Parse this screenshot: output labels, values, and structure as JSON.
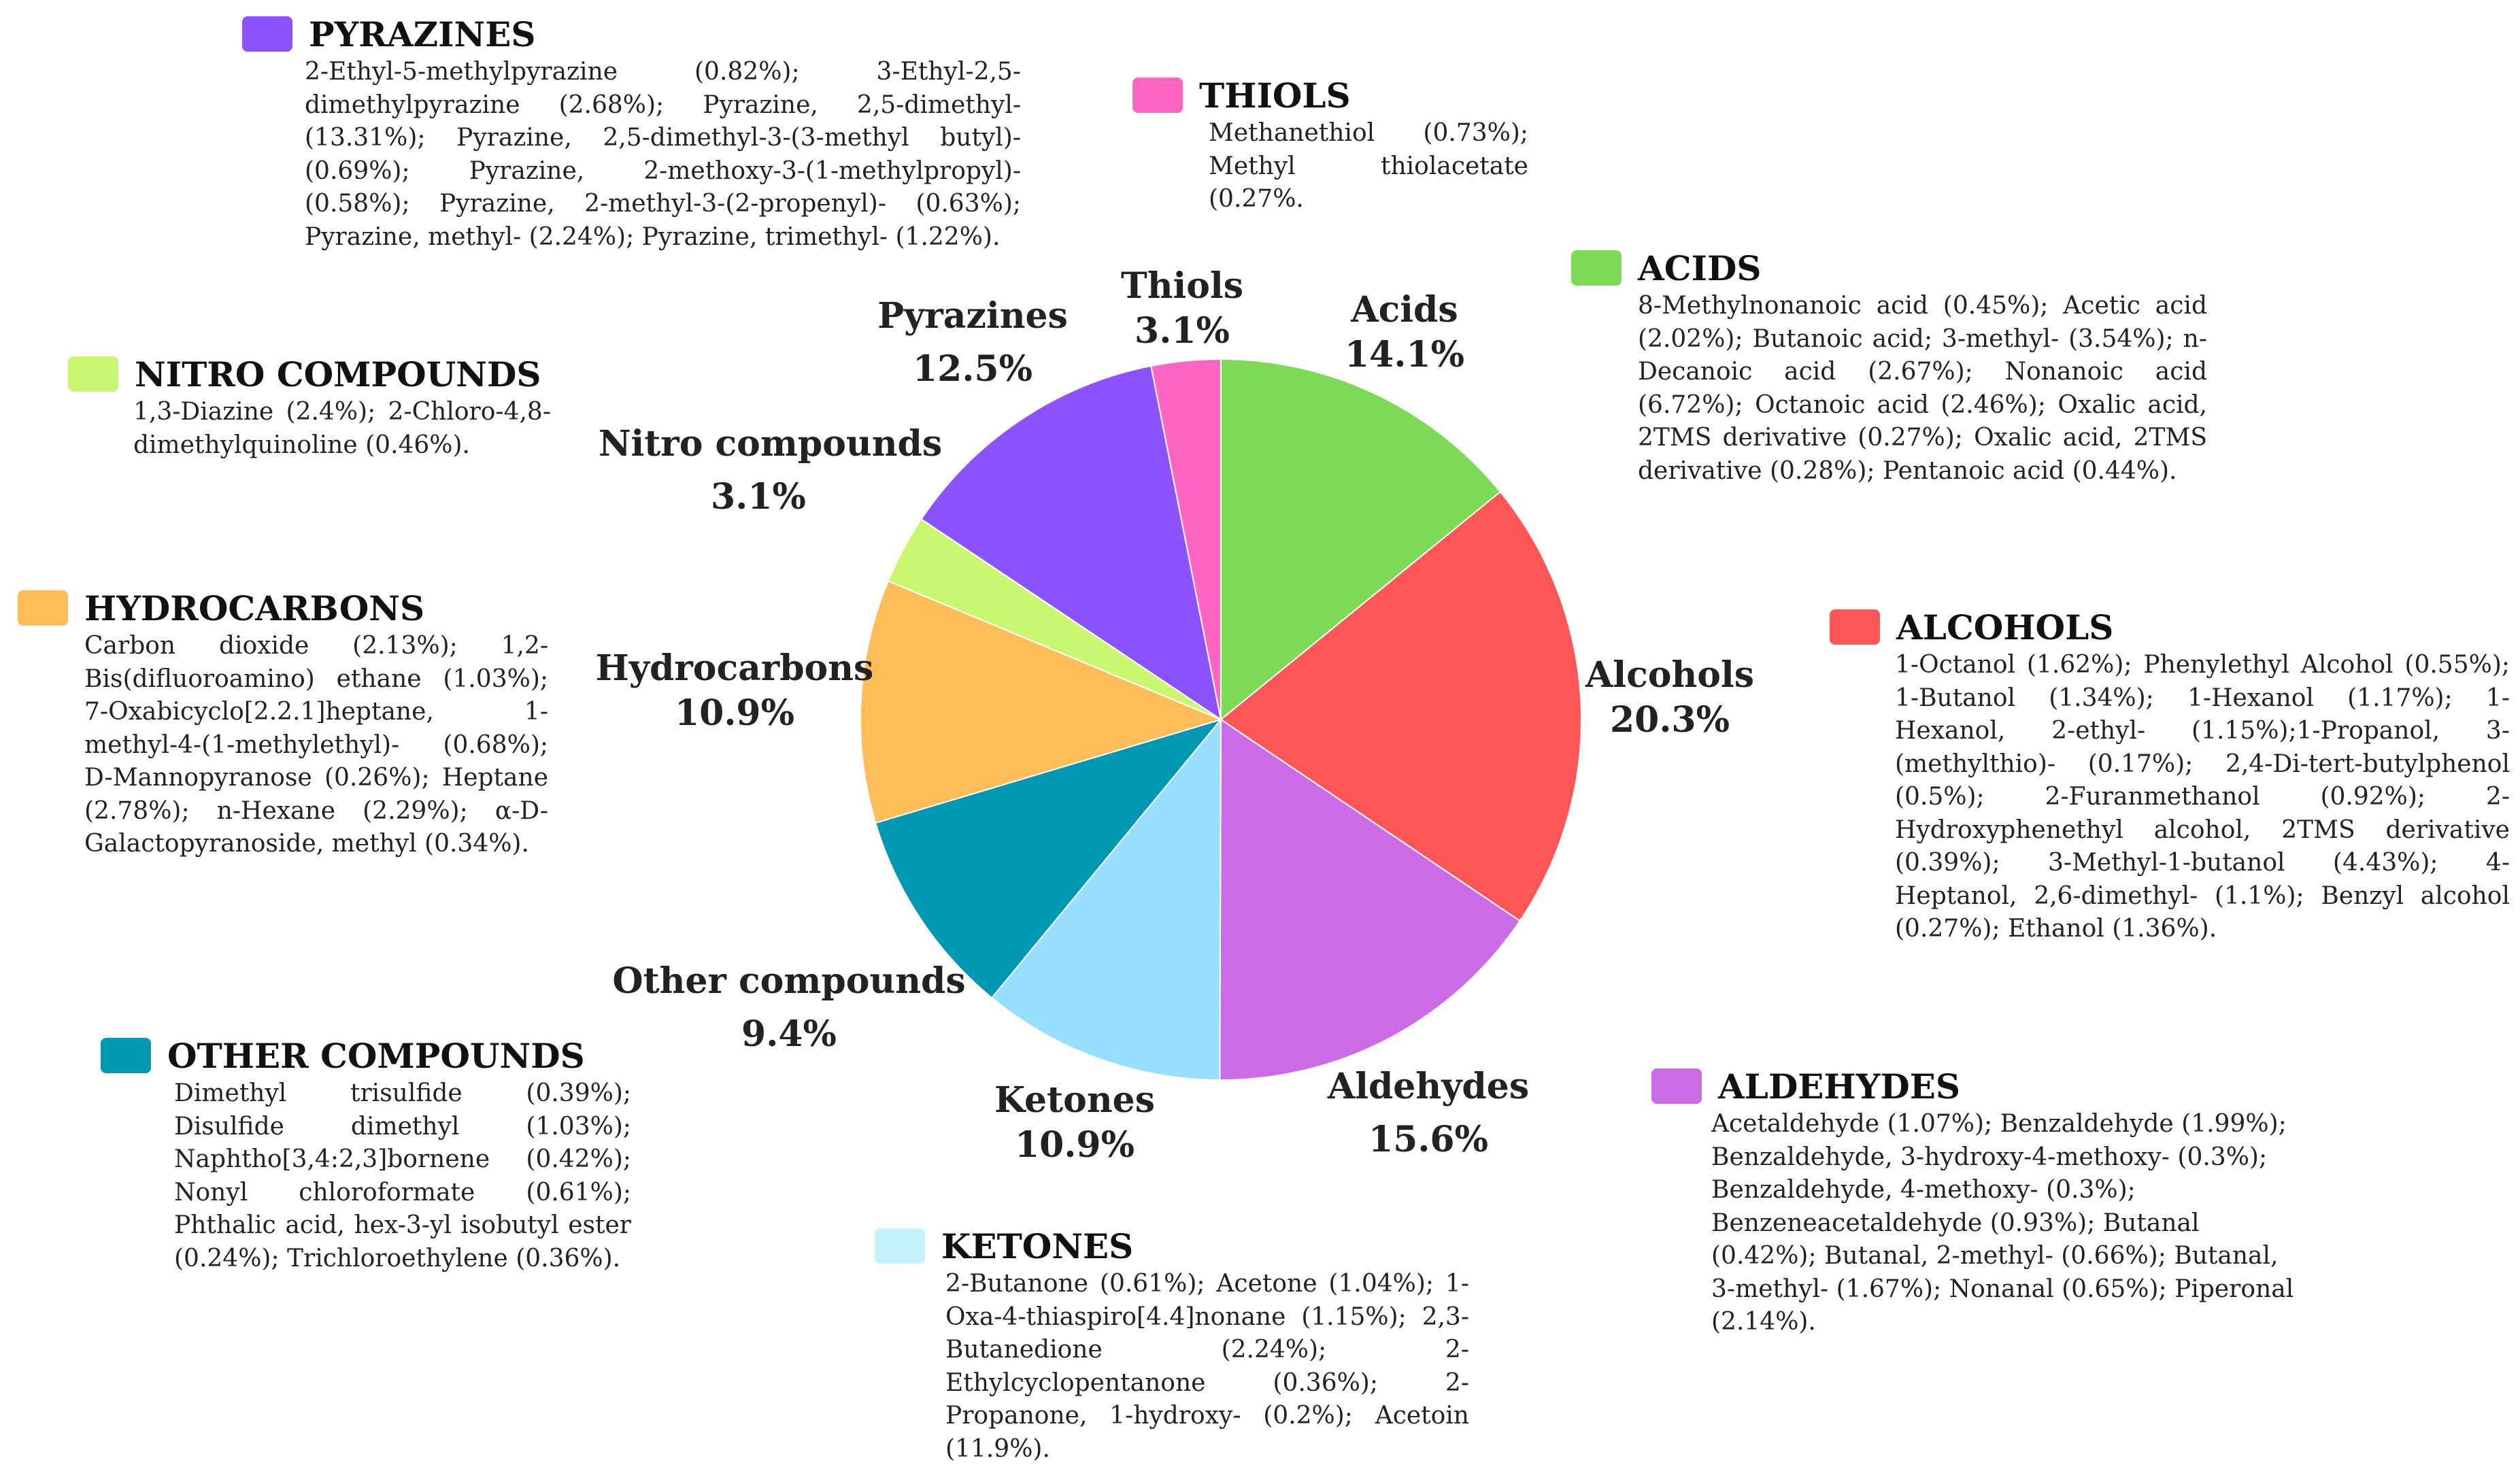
{
  "chart_data": {
    "type": "pie",
    "title": "",
    "slices": [
      {
        "key": "acids",
        "label": "Acids",
        "value": 14.1,
        "value_label": "14.1%",
        "color": "#7ED957"
      },
      {
        "key": "alcohols",
        "label": "Alcohols",
        "value": 20.3,
        "value_label": "20.3%",
        "color": "#FF5757"
      },
      {
        "key": "aldehydes",
        "label": "Aldehydes",
        "value": 15.6,
        "value_label": "15.6%",
        "color": "#CB6CE6"
      },
      {
        "key": "ketones",
        "label": "Ketones",
        "value": 10.9,
        "value_label": "10.9%",
        "color": "#98DFFF"
      },
      {
        "key": "other",
        "label": "Other compounds",
        "value": 9.4,
        "value_label": "9.4%",
        "color": "#0097B2"
      },
      {
        "key": "hydrocarbons",
        "label": "Hydrocarbons",
        "value": 10.9,
        "value_label": "10.9%",
        "color": "#FFBD59"
      },
      {
        "key": "nitro",
        "label": "Nitro compounds",
        "value": 3.1,
        "value_label": "3.1%",
        "color": "#C9F76F"
      },
      {
        "key": "pyrazines",
        "label": "Pyrazines",
        "value": 12.5,
        "value_label": "12.5%",
        "color": "#8C52FF"
      },
      {
        "key": "thiols",
        "label": "Thiols",
        "value": 3.1,
        "value_label": "3.1%",
        "color": "#FF66C4"
      }
    ]
  },
  "legends": {
    "pyrazines": {
      "title": "PYRAZINES",
      "text": "2-Ethyl-5-methylpyrazine (0.82%); 3-Ethyl-2,5-dimethylpyrazine (2.68%); Pyrazine, 2,5-dimethyl- (13.31%); Pyrazine, 2,5-dimethyl-3-(3-methyl butyl)- (0.69%); Pyrazine, 2-methoxy-3-(1-methylpropyl)- (0.58%); Pyrazine, 2-methyl-3-(2-propenyl)- (0.63%); Pyrazine, methyl- (2.24%); Pyrazine, trimethyl- (1.22%)."
    },
    "thiols": {
      "title": "THIOLS",
      "text": "Methanethiol (0.73%); Methyl thiolacetate (0.27%."
    },
    "acids": {
      "title": "ACIDS",
      "text": "8-Methylnonanoic acid (0.45%); Acetic acid (2.02%); Butanoic acid; 3-methyl- (3.54%); n-Decanoic acid (2.67%); Nonanoic acid (6.72%); Octanoic acid (2.46%); Oxalic acid, 2TMS derivative (0.27%); Oxalic acid, 2TMS derivative (0.28%); Pentanoic acid (0.44%)."
    },
    "nitro": {
      "title": "NITRO COMPOUNDS",
      "text": "1,3-Diazine (2.4%); 2-Chloro-4,8-dimethylquinoline (0.46%)."
    },
    "hydrocarbons": {
      "title": "HYDROCARBONS",
      "text": "Carbon dioxide (2.13%); 1,2-Bis(difluoroamino) ethane (1.03%); 7-Oxabicyclo[2.2.1]heptane, 1-methyl-4-(1-methylethyl)- (0.68%); D-Mannopyranose (0.26%); Heptane (2.78%); n-Hexane (2.29%); α-D-Galactopyranoside, methyl (0.34%)."
    },
    "alcohols": {
      "title": "ALCOHOLS",
      "text": "1-Octanol (1.62%); Phenylethyl Alcohol (0.55%); 1-Butanol (1.34%); 1-Hexanol (1.17%); 1-Hexanol, 2-ethyl- (1.15%);1-Propanol, 3-(methylthio)- (0.17%); 2,4-Di-tert-butylphenol (0.5%); 2-Furanmethanol (0.92%); 2-Hydroxyphenethyl alcohol, 2TMS derivative (0.39%); 3-Methyl-1-butanol (4.43%); 4-Heptanol, 2,6-dimethyl- (1.1%); Benzyl alcohol (0.27%); Ethanol (1.36%)."
    },
    "other": {
      "title": "OTHER COMPOUNDS",
      "text": "Dimethyl trisulfide (0.39%); Disulfide dimethyl (1.03%); Naphtho[3,4:2,3]bornene (0.42%); Nonyl chloroformate (0.61%); Phthalic acid, hex-3-yl isobutyl ester (0.24%); Trichloroethylene (0.36%)."
    },
    "aldehydes": {
      "title": "ALDEHYDES",
      "text": "Acetaldehyde (1.07%); Benzaldehyde (1.99%); Benzaldehyde, 3-hydroxy-4-methoxy- (0.3%); Benzaldehyde, 4-methoxy- (0.3%); Benzeneacetaldehyde (0.93%); Butanal (0.42%); Butanal, 2-methyl- (0.66%); Butanal, 3-methyl- (1.67%); Nonanal (0.65%); Piperonal (2.14%)."
    },
    "ketones": {
      "title": "KETONES",
      "text": "2-Butanone (0.61%); Acetone (1.04%); 1-Oxa-4-thiaspiro[4.4]nonane (1.15%); 2,3-Butanedione (2.24%); 2-Ethylcyclopentanone (0.36%); 2-Propanone, 1-hydroxy- (0.2%); Acetoin (11.9%)."
    }
  }
}
